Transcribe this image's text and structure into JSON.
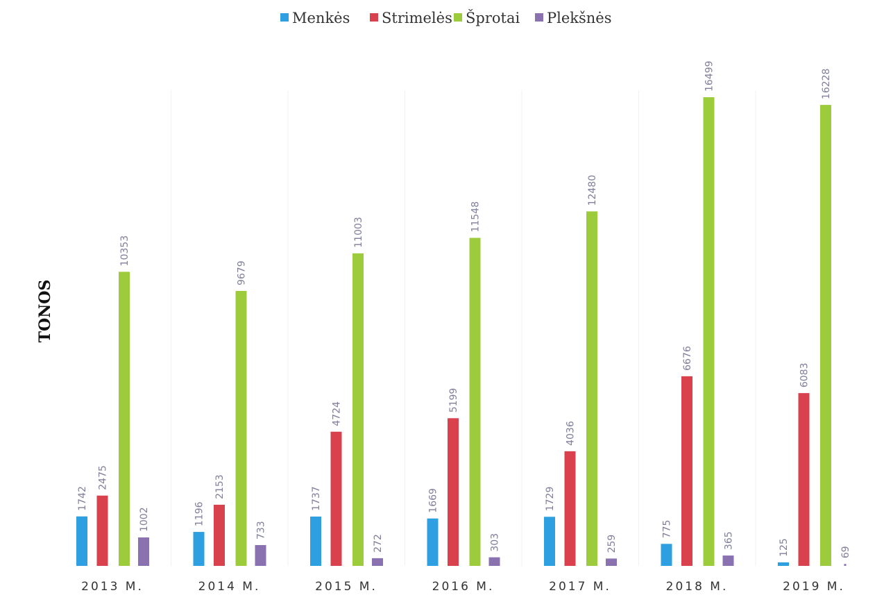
{
  "chart_data": {
    "type": "bar",
    "ylabel": "TONOS",
    "legend_position": "top",
    "categories": [
      "2013 M.",
      "2014 M.",
      "2015 M.",
      "2016 M.",
      "2017 M.",
      "2018 M.",
      "2019 M."
    ],
    "series": [
      {
        "name": "Menkės",
        "color": "#2e9fe0",
        "values": [
          1742,
          1196,
          1737,
          1669,
          1729,
          775,
          125
        ]
      },
      {
        "name": "Strimelės",
        "color": "#d9414c",
        "values": [
          2475,
          2153,
          4724,
          5199,
          4036,
          6676,
          6083
        ]
      },
      {
        "name": "Šprotai",
        "color": "#9ccc3c",
        "values": [
          10353,
          9679,
          11003,
          11548,
          12480,
          16499,
          16228
        ]
      },
      {
        "name": "Plekšnės",
        "color": "#8a72b0",
        "values": [
          1002,
          733,
          272,
          303,
          259,
          365,
          69
        ]
      }
    ],
    "ylim": [
      0,
      16499
    ],
    "grid": false
  }
}
